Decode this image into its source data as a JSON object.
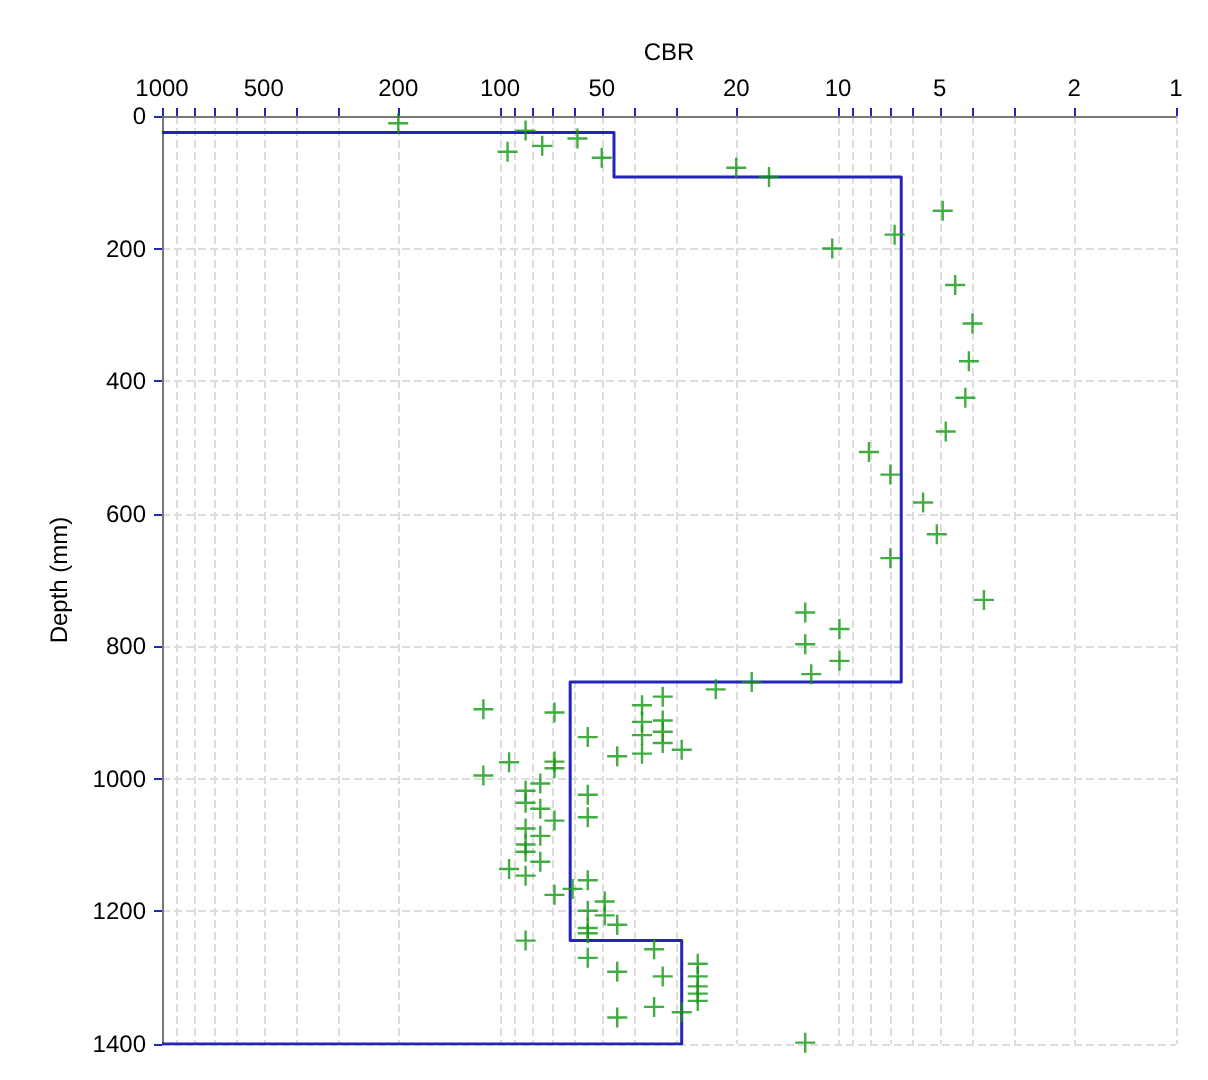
{
  "chart_data": {
    "type": "scatter",
    "xlabel": "CBR",
    "ylabel": "Depth (mm)",
    "log": "x",
    "grid": true,
    "xlim": [
      1000,
      1
    ],
    "ylim": [
      1400,
      0
    ],
    "xticks": [
      1000,
      {
        "value": 900,
        "label": null
      },
      {
        "value": 800,
        "label": null
      },
      {
        "value": 700,
        "label": null
      },
      {
        "value": 600,
        "label": null
      },
      500,
      {
        "value": 400,
        "label": null
      },
      {
        "value": 300,
        "label": null
      },
      200,
      100,
      {
        "value": 90,
        "label": null
      },
      {
        "value": 80,
        "label": null
      },
      {
        "value": 70,
        "label": null
      },
      {
        "value": 60,
        "label": null
      },
      50,
      {
        "value": 40,
        "label": null
      },
      {
        "value": 30,
        "label": null
      },
      20,
      10,
      {
        "value": 9,
        "label": null
      },
      {
        "value": 8,
        "label": null
      },
      {
        "value": 7,
        "label": null
      },
      {
        "value": 6,
        "label": null
      },
      5,
      {
        "value": 4,
        "label": null
      },
      {
        "value": 3,
        "label": null
      },
      2,
      1
    ],
    "yticks": [
      0,
      200,
      400,
      600,
      800,
      1000,
      1200,
      1400
    ],
    "series": [
      {
        "type": "line",
        "color": "#2424b8",
        "marker": "none",
        "line_style": "solid",
        "x": [
          1000,
          46,
          46,
          6.5,
          6.5,
          62,
          62,
          29,
          29,
          1000
        ],
        "values": [
          25,
          25,
          92,
          92,
          854,
          854,
          1244,
          1244,
          1400,
          1400
        ]
      },
      {
        "color": "#119911",
        "marker": "cross",
        "x": [
          200,
          84,
          95,
          75,
          59,
          50,
          20,
          16,
          4.9,
          6.8,
          10.4,
          4.5,
          4.0,
          4.1,
          4.2,
          4.8,
          8.1,
          7.0,
          5.6,
          5.1,
          7.0,
          3.7,
          12.5,
          9.9,
          12.5,
          9.9,
          12,
          18,
          23,
          112,
          69,
          38,
          33,
          38,
          33,
          33,
          38,
          55,
          33,
          29,
          38,
          45,
          94,
          69,
          112,
          69,
          76,
          84,
          84,
          55,
          76,
          55,
          69,
          84,
          76,
          84,
          84,
          76,
          94,
          84,
          55,
          61,
          69,
          49,
          55,
          49,
          45,
          55,
          55,
          84,
          35,
          55,
          26,
          45,
          33,
          26,
          26,
          26,
          26,
          29,
          35,
          45,
          12.5
        ],
        "values": [
          11,
          22,
          54,
          45,
          34,
          63,
          78,
          92,
          143,
          179,
          200,
          255,
          313,
          370,
          425,
          476,
          507,
          541,
          583,
          631,
          667,
          730,
          749,
          774,
          797,
          822,
          842,
          854,
          865,
          895,
          900,
          889,
          876,
          914,
          912,
          929,
          934,
          937,
          946,
          956,
          962,
          966,
          975,
          974,
          995,
          984,
          1007,
          1018,
          1036,
          1024,
          1045,
          1058,
          1063,
          1075,
          1086,
          1099,
          1110,
          1125,
          1136,
          1146,
          1153,
          1166,
          1175,
          1185,
          1199,
          1206,
          1220,
          1225,
          1233,
          1244,
          1257,
          1270,
          1279,
          1291,
          1298,
          1298,
          1313,
          1324,
          1335,
          1352,
          1344,
          1360,
          1398
        ]
      }
    ]
  }
}
